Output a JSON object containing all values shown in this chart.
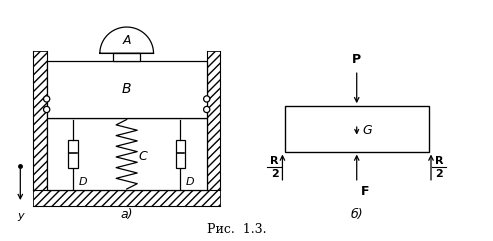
{
  "fig_width": 4.93,
  "fig_height": 2.41,
  "dpi": 100,
  "background": "#ffffff",
  "caption": "Рис.  1.3.",
  "label_a": "а)",
  "label_b": "б)"
}
